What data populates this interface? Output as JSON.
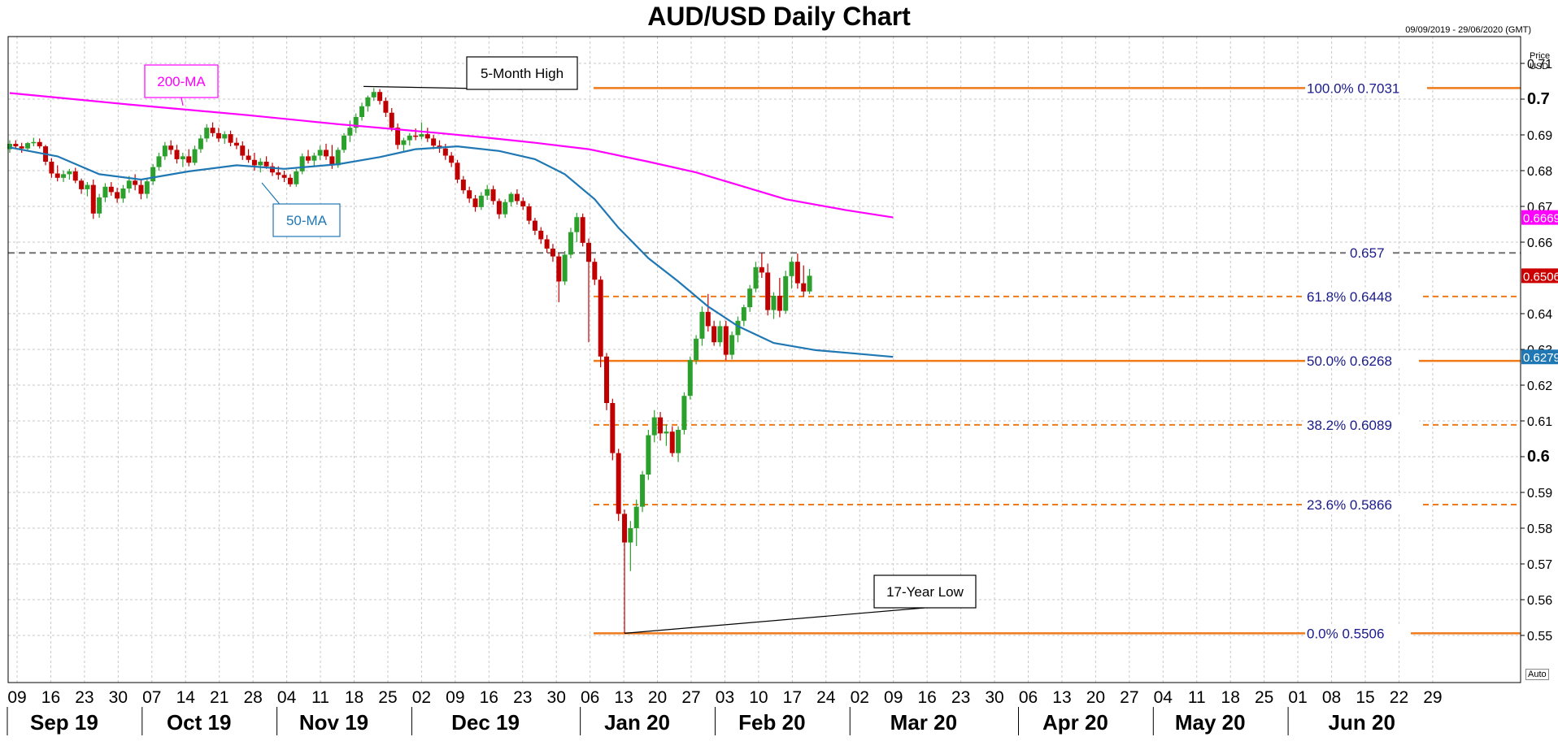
{
  "header": {
    "title": "AUD/USD Daily Chart",
    "date_range": "09/09/2019 - 29/06/2020 (GMT)",
    "price_label_1": "Price",
    "price_label_2": "USD",
    "auto_label": "Auto"
  },
  "chart_data": {
    "type": "candlestick",
    "title": "AUD/USD Daily Chart",
    "ylim": [
      0.545,
      0.715
    ],
    "y_ticks": [
      {
        "value": 0.71,
        "label": "0.71",
        "major": false
      },
      {
        "value": 0.7,
        "label": "0.7",
        "major": true
      },
      {
        "value": 0.69,
        "label": "0.69",
        "major": false
      },
      {
        "value": 0.68,
        "label": "0.68",
        "major": false
      },
      {
        "value": 0.67,
        "label": "0.67",
        "major": false
      },
      {
        "value": 0.66,
        "label": "0.66",
        "major": false
      },
      {
        "value": 0.64,
        "label": "0.64",
        "major": false
      },
      {
        "value": 0.63,
        "label": "0.63",
        "major": false
      },
      {
        "value": 0.62,
        "label": "0.62",
        "major": false
      },
      {
        "value": 0.61,
        "label": "0.61",
        "major": false
      },
      {
        "value": 0.6,
        "label": "0.6",
        "major": true
      },
      {
        "value": 0.59,
        "label": "0.59",
        "major": false
      },
      {
        "value": 0.58,
        "label": "0.58",
        "major": false
      },
      {
        "value": 0.57,
        "label": "0.57",
        "major": false
      },
      {
        "value": 0.56,
        "label": "0.56",
        "major": false
      },
      {
        "value": 0.55,
        "label": "0.55",
        "major": false
      }
    ],
    "x_ticks": [
      "09",
      "16",
      "23",
      "30",
      "07",
      "14",
      "21",
      "28",
      "04",
      "11",
      "18",
      "25",
      "02",
      "09",
      "16",
      "23",
      "30",
      "06",
      "13",
      "20",
      "27",
      "03",
      "10",
      "17",
      "24",
      "02",
      "09",
      "16",
      "23",
      "30",
      "06",
      "13",
      "20",
      "27",
      "04",
      "11",
      "18",
      "25",
      "01",
      "08",
      "15",
      "22",
      "29"
    ],
    "months": [
      "Sep 19",
      "Oct 19",
      "Nov 19",
      "Dec 19",
      "Jan 20",
      "Feb 20",
      "Mar 20",
      "Apr 20",
      "May 20",
      "Jun 20"
    ],
    "month_tick_index": [
      0,
      4,
      8,
      12,
      17,
      21,
      25,
      30,
      34,
      38
    ],
    "fibonacci": [
      {
        "label": "100.0%",
        "value": 0.7031,
        "value_text": "0.7031",
        "style": "solid"
      },
      {
        "label": "61.8%",
        "value": 0.6448,
        "value_text": "0.6448",
        "style": "dashed"
      },
      {
        "label": "50.0%",
        "value": 0.6268,
        "value_text": "0.6268",
        "style": "solid"
      },
      {
        "label": "38.2%",
        "value": 0.6089,
        "value_text": "0.6089",
        "style": "dashed"
      },
      {
        "label": "23.6%",
        "value": 0.5866,
        "value_text": "0.5866",
        "style": "dashed"
      },
      {
        "label": "0.0%",
        "value": 0.5506,
        "value_text": "0.5506",
        "style": "solid"
      }
    ],
    "resistance": {
      "value": 0.657,
      "label": "0.657"
    },
    "price_tags": [
      {
        "value": 0.6669,
        "label": "0.6669",
        "color": "#ff00ff"
      },
      {
        "value": 0.6506,
        "label": "0.6506",
        "color": "#cc0000"
      },
      {
        "value": 0.6279,
        "label": "0.6279",
        "color": "#1f77b4"
      }
    ],
    "ma200": {
      "name": "200-MA",
      "color": "#ff00ff",
      "points": [
        [
          0,
          0.7017
        ],
        [
          20,
          0.6985
        ],
        [
          40,
          0.6955
        ],
        [
          55,
          0.693
        ],
        [
          72,
          0.6905
        ],
        [
          80,
          0.6892
        ],
        [
          88,
          0.6878
        ],
        [
          97,
          0.686
        ],
        [
          107,
          0.6825
        ],
        [
          115,
          0.6795
        ],
        [
          122,
          0.676
        ],
        [
          130,
          0.672
        ],
        [
          140,
          0.669
        ],
        [
          148,
          0.6669
        ]
      ]
    },
    "ma50": {
      "name": "50-MA",
      "color": "#1f77b4",
      "points": [
        [
          0,
          0.6865
        ],
        [
          8,
          0.684
        ],
        [
          15,
          0.679
        ],
        [
          22,
          0.6775
        ],
        [
          30,
          0.6798
        ],
        [
          38,
          0.6815
        ],
        [
          46,
          0.6805
        ],
        [
          55,
          0.6818
        ],
        [
          62,
          0.6838
        ],
        [
          68,
          0.686
        ],
        [
          75,
          0.6868
        ],
        [
          82,
          0.6855
        ],
        [
          88,
          0.6832
        ],
        [
          93,
          0.679
        ],
        [
          98,
          0.672
        ],
        [
          102,
          0.664
        ],
        [
          107,
          0.6555
        ],
        [
          112,
          0.649
        ],
        [
          117,
          0.642
        ],
        [
          122,
          0.6365
        ],
        [
          128,
          0.6318
        ],
        [
          135,
          0.6298
        ],
        [
          142,
          0.6288
        ],
        [
          148,
          0.6279
        ]
      ]
    },
    "callouts": [
      {
        "text": "5-Month High",
        "index": 59,
        "value": 0.7031
      },
      {
        "text": "17-Year Low",
        "index": 103,
        "value": 0.5506
      },
      {
        "text": "200-MA",
        "index": 15,
        "value": 0.6985
      },
      {
        "text": "50-MA",
        "index": 25,
        "value": 0.6795
      }
    ],
    "candles": [
      [
        0.686,
        0.6885,
        0.685,
        0.6875
      ],
      [
        0.6875,
        0.6885,
        0.686,
        0.6868
      ],
      [
        0.6868,
        0.6878,
        0.685,
        0.6862
      ],
      [
        0.6862,
        0.688,
        0.6855,
        0.6877
      ],
      [
        0.6877,
        0.6892,
        0.6868,
        0.688
      ],
      [
        0.688,
        0.689,
        0.6862,
        0.6868
      ],
      [
        0.6868,
        0.6872,
        0.6815,
        0.6825
      ],
      [
        0.6825,
        0.6835,
        0.678,
        0.6792
      ],
      [
        0.6792,
        0.6815,
        0.677,
        0.678
      ],
      [
        0.678,
        0.68,
        0.6768,
        0.679
      ],
      [
        0.679,
        0.6805,
        0.6775,
        0.6798
      ],
      [
        0.6798,
        0.6808,
        0.6765,
        0.6772
      ],
      [
        0.6772,
        0.6778,
        0.6735,
        0.6748
      ],
      [
        0.6748,
        0.6768,
        0.6728,
        0.676
      ],
      [
        0.676,
        0.6775,
        0.6665,
        0.668
      ],
      [
        0.668,
        0.6735,
        0.6668,
        0.6725
      ],
      [
        0.6725,
        0.6765,
        0.6712,
        0.6755
      ],
      [
        0.6755,
        0.6768,
        0.673,
        0.674
      ],
      [
        0.674,
        0.6752,
        0.671,
        0.6722
      ],
      [
        0.6722,
        0.676,
        0.671,
        0.675
      ],
      [
        0.675,
        0.6785,
        0.6738,
        0.6772
      ],
      [
        0.6772,
        0.679,
        0.6745,
        0.676
      ],
      [
        0.676,
        0.6775,
        0.672,
        0.6735
      ],
      [
        0.6735,
        0.678,
        0.6722,
        0.677
      ],
      [
        0.677,
        0.6818,
        0.676,
        0.681
      ],
      [
        0.681,
        0.685,
        0.68,
        0.684
      ],
      [
        0.684,
        0.688,
        0.683,
        0.687
      ],
      [
        0.687,
        0.6885,
        0.6845,
        0.6858
      ],
      [
        0.6858,
        0.6872,
        0.682,
        0.6832
      ],
      [
        0.6832,
        0.685,
        0.681,
        0.684
      ],
      [
        0.684,
        0.686,
        0.6812,
        0.6822
      ],
      [
        0.6822,
        0.687,
        0.6815,
        0.686
      ],
      [
        0.686,
        0.69,
        0.685,
        0.689
      ],
      [
        0.689,
        0.693,
        0.688,
        0.692
      ],
      [
        0.692,
        0.6935,
        0.6895,
        0.6905
      ],
      [
        0.6905,
        0.692,
        0.688,
        0.689
      ],
      [
        0.689,
        0.691,
        0.6875,
        0.6902
      ],
      [
        0.6902,
        0.6912,
        0.6868,
        0.6878
      ],
      [
        0.6878,
        0.6892,
        0.686,
        0.687
      ],
      [
        0.687,
        0.6882,
        0.683,
        0.6842
      ],
      [
        0.6842,
        0.686,
        0.6822,
        0.683
      ],
      [
        0.683,
        0.685,
        0.68,
        0.6815
      ],
      [
        0.6815,
        0.6835,
        0.6795,
        0.6825
      ],
      [
        0.6825,
        0.684,
        0.6805,
        0.6812
      ],
      [
        0.6812,
        0.6822,
        0.6785,
        0.6795
      ],
      [
        0.6795,
        0.6812,
        0.6775,
        0.6788
      ],
      [
        0.6788,
        0.68,
        0.6768,
        0.678
      ],
      [
        0.678,
        0.679,
        0.6755,
        0.6762
      ],
      [
        0.6762,
        0.6805,
        0.6755,
        0.6798
      ],
      [
        0.6798,
        0.6848,
        0.679,
        0.684
      ],
      [
        0.684,
        0.6858,
        0.682,
        0.6828
      ],
      [
        0.6828,
        0.685,
        0.681,
        0.6842
      ],
      [
        0.6842,
        0.687,
        0.683,
        0.6858
      ],
      [
        0.6858,
        0.6875,
        0.683,
        0.684
      ],
      [
        0.684,
        0.6872,
        0.6805,
        0.6815
      ],
      [
        0.6815,
        0.6865,
        0.6808,
        0.6858
      ],
      [
        0.6858,
        0.6905,
        0.685,
        0.6898
      ],
      [
        0.6898,
        0.694,
        0.688,
        0.692
      ],
      [
        0.692,
        0.696,
        0.6905,
        0.695
      ],
      [
        0.695,
        0.699,
        0.694,
        0.698
      ],
      [
        0.698,
        0.701,
        0.6965,
        0.7005
      ],
      [
        0.7005,
        0.7031,
        0.6995,
        0.702
      ],
      [
        0.702,
        0.7028,
        0.6985,
        0.6995
      ],
      [
        0.6995,
        0.7005,
        0.695,
        0.6962
      ],
      [
        0.6962,
        0.6975,
        0.691,
        0.692
      ],
      [
        0.692,
        0.6932,
        0.686,
        0.6872
      ],
      [
        0.6872,
        0.6892,
        0.6855,
        0.6885
      ],
      [
        0.6885,
        0.6905,
        0.687,
        0.6898
      ],
      [
        0.6898,
        0.6918,
        0.6885,
        0.6895
      ],
      [
        0.6895,
        0.6935,
        0.6888,
        0.6902
      ],
      [
        0.6902,
        0.692,
        0.688,
        0.689
      ],
      [
        0.689,
        0.69,
        0.686,
        0.687
      ],
      [
        0.687,
        0.6885,
        0.685,
        0.6862
      ],
      [
        0.6862,
        0.6875,
        0.683,
        0.6842
      ],
      [
        0.6842,
        0.6852,
        0.681,
        0.6822
      ],
      [
        0.6822,
        0.683,
        0.6765,
        0.6775
      ],
      [
        0.6775,
        0.6785,
        0.6735,
        0.6745
      ],
      [
        0.6745,
        0.6755,
        0.671,
        0.6722
      ],
      [
        0.6722,
        0.6732,
        0.6685,
        0.6698
      ],
      [
        0.6698,
        0.674,
        0.669,
        0.673
      ],
      [
        0.673,
        0.676,
        0.6718,
        0.6748
      ],
      [
        0.6748,
        0.6758,
        0.6705,
        0.6715
      ],
      [
        0.6715,
        0.6722,
        0.6665,
        0.6678
      ],
      [
        0.6678,
        0.672,
        0.6668,
        0.6712
      ],
      [
        0.6712,
        0.674,
        0.67,
        0.6735
      ],
      [
        0.6735,
        0.6748,
        0.6705,
        0.6715
      ],
      [
        0.6715,
        0.6725,
        0.669,
        0.67
      ],
      [
        0.67,
        0.6708,
        0.665,
        0.666
      ],
      [
        0.666,
        0.6668,
        0.662,
        0.6632
      ],
      [
        0.6632,
        0.6642,
        0.6595,
        0.6608
      ],
      [
        0.6608,
        0.662,
        0.657,
        0.6582
      ],
      [
        0.6582,
        0.6595,
        0.6545,
        0.656
      ],
      [
        0.656,
        0.657,
        0.6432,
        0.649
      ],
      [
        0.649,
        0.6575,
        0.648,
        0.6565
      ],
      [
        0.6565,
        0.664,
        0.6555,
        0.6628
      ],
      [
        0.6628,
        0.6682,
        0.66,
        0.667
      ],
      [
        0.667,
        0.668,
        0.6588,
        0.6598
      ],
      [
        0.6598,
        0.661,
        0.632,
        0.6545
      ],
      [
        0.6545,
        0.6555,
        0.648,
        0.6495
      ],
      [
        0.6495,
        0.6505,
        0.625,
        0.628
      ],
      [
        0.628,
        0.629,
        0.613,
        0.615
      ],
      [
        0.615,
        0.6162,
        0.599,
        0.601
      ],
      [
        0.601,
        0.6022,
        0.582,
        0.584
      ],
      [
        0.584,
        0.5852,
        0.5506,
        0.576
      ],
      [
        0.576,
        0.582,
        0.568,
        0.58
      ],
      [
        0.58,
        0.588,
        0.575,
        0.586
      ],
      [
        0.586,
        0.596,
        0.5845,
        0.595
      ],
      [
        0.595,
        0.6075,
        0.5935,
        0.606
      ],
      [
        0.606,
        0.613,
        0.604,
        0.611
      ],
      [
        0.611,
        0.6125,
        0.6045,
        0.6065
      ],
      [
        0.6065,
        0.609,
        0.603,
        0.607
      ],
      [
        0.607,
        0.6085,
        0.6,
        0.601
      ],
      [
        0.601,
        0.6085,
        0.5985,
        0.6075
      ],
      [
        0.6075,
        0.618,
        0.6062,
        0.617
      ],
      [
        0.617,
        0.628,
        0.616,
        0.627
      ],
      [
        0.627,
        0.634,
        0.6258,
        0.633
      ],
      [
        0.633,
        0.642,
        0.631,
        0.6405
      ],
      [
        0.6405,
        0.6455,
        0.635,
        0.6365
      ],
      [
        0.6365,
        0.638,
        0.631,
        0.632
      ],
      [
        0.632,
        0.638,
        0.6308,
        0.6365
      ],
      [
        0.6365,
        0.638,
        0.627,
        0.6285
      ],
      [
        0.6285,
        0.635,
        0.6272,
        0.634
      ],
      [
        0.634,
        0.6392,
        0.632,
        0.638
      ],
      [
        0.638,
        0.6425,
        0.6365,
        0.6418
      ],
      [
        0.6418,
        0.648,
        0.6405,
        0.647
      ],
      [
        0.647,
        0.6545,
        0.646,
        0.653
      ],
      [
        0.653,
        0.657,
        0.65,
        0.6515
      ],
      [
        0.6515,
        0.654,
        0.6395,
        0.641
      ],
      [
        0.641,
        0.646,
        0.6385,
        0.645
      ],
      [
        0.645,
        0.65,
        0.639,
        0.6408
      ],
      [
        0.6408,
        0.652,
        0.64,
        0.6505
      ],
      [
        0.6505,
        0.6558,
        0.647,
        0.6545
      ],
      [
        0.6545,
        0.6568,
        0.647,
        0.6485
      ],
      [
        0.6485,
        0.6535,
        0.6448,
        0.6462
      ],
      [
        0.6462,
        0.6525,
        0.6455,
        0.6506
      ]
    ]
  }
}
